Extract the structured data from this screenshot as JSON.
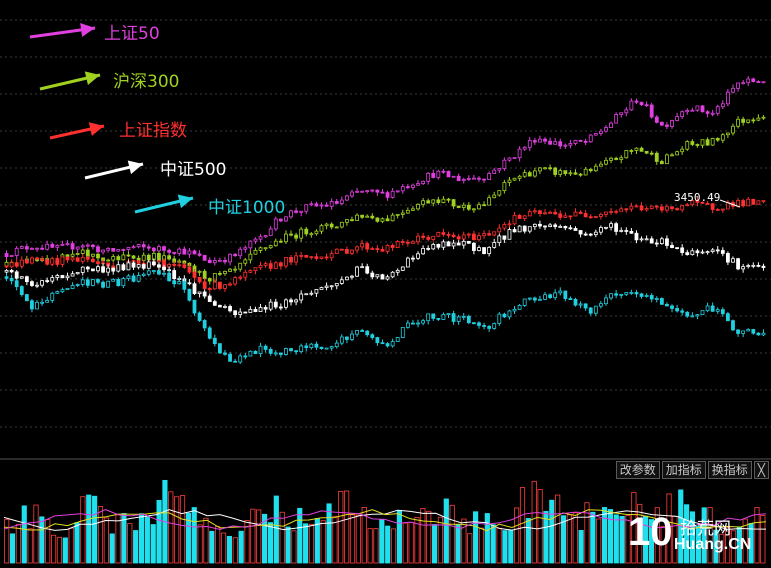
{
  "chart_data": {
    "type": "candlestick",
    "legend": [
      {
        "name": "上证50",
        "color": "#e040e0"
      },
      {
        "name": "沪深300",
        "color": "#a0d020"
      },
      {
        "name": "上证指数",
        "color": "#ff3030"
      },
      {
        "name": "中证500",
        "color": "#ffffff"
      },
      {
        "name": "中证1000",
        "color": "#20d0e0"
      }
    ],
    "annotation": "3450.49",
    "relative_levels": {
      "上证50": [
        0.3,
        0.35,
        0.33,
        0.36,
        0.31,
        0.34,
        0.33,
        0.32,
        0.25,
        0.28,
        0.4,
        0.55,
        0.6,
        0.62,
        0.7,
        0.68,
        0.75,
        0.82,
        0.78,
        0.8,
        0.92,
        1.05,
        1.0,
        1.02,
        1.15,
        1.3,
        1.12,
        1.25,
        1.2,
        1.4,
        1.42
      ],
      "沪深300": [
        0.22,
        0.28,
        0.26,
        0.3,
        0.26,
        0.28,
        0.28,
        0.22,
        0.14,
        0.18,
        0.32,
        0.4,
        0.45,
        0.48,
        0.55,
        0.52,
        0.6,
        0.66,
        0.6,
        0.62,
        0.78,
        0.84,
        0.82,
        0.82,
        0.9,
        0.98,
        0.9,
        1.0,
        1.02,
        1.15,
        1.2
      ],
      "上证指数": [
        0.22,
        0.26,
        0.25,
        0.27,
        0.22,
        0.24,
        0.25,
        0.2,
        0.08,
        0.12,
        0.2,
        0.25,
        0.28,
        0.3,
        0.35,
        0.33,
        0.38,
        0.42,
        0.4,
        0.42,
        0.52,
        0.56,
        0.55,
        0.55,
        0.58,
        0.6,
        0.58,
        0.62,
        0.6,
        0.63,
        0.62
      ],
      "中证500": [
        0.18,
        0.1,
        0.14,
        0.2,
        0.2,
        0.22,
        0.24,
        0.12,
        0.0,
        -0.1,
        -0.05,
        -0.02,
        0.05,
        0.1,
        0.2,
        0.12,
        0.28,
        0.35,
        0.36,
        0.32,
        0.45,
        0.48,
        0.48,
        0.42,
        0.48,
        0.4,
        0.38,
        0.3,
        0.34,
        0.22,
        0.2
      ],
      "中证1000": [
        0.15,
        -0.05,
        0.05,
        0.12,
        0.1,
        0.14,
        0.18,
        0.08,
        -0.25,
        -0.4,
        -0.32,
        -0.34,
        -0.3,
        -0.28,
        -0.2,
        -0.3,
        -0.15,
        -0.1,
        -0.12,
        -0.18,
        -0.05,
        0.02,
        0.05,
        -0.08,
        0.02,
        0.04,
        -0.02,
        -0.1,
        -0.05,
        -0.2,
        -0.22
      ]
    },
    "volume_levels": [
      0.5,
      0.7,
      0.4,
      0.8,
      0.6,
      0.5,
      0.9,
      0.7,
      0.6,
      0.5,
      0.8,
      0.6,
      0.7,
      0.9,
      0.5,
      0.6,
      0.8,
      0.7,
      0.6,
      0.5,
      0.9,
      0.8,
      0.7,
      0.6,
      0.8,
      0.7,
      0.9,
      0.6,
      0.5,
      0.8
    ],
    "grid": true
  },
  "toolbar": {
    "modify_params": "改参数",
    "add_indicator": "加指标",
    "switch_indicator": "换指标",
    "close": "╳"
  },
  "watermark": {
    "number": "10",
    "site": "拾荒网",
    "domain": "Huang.CN"
  }
}
